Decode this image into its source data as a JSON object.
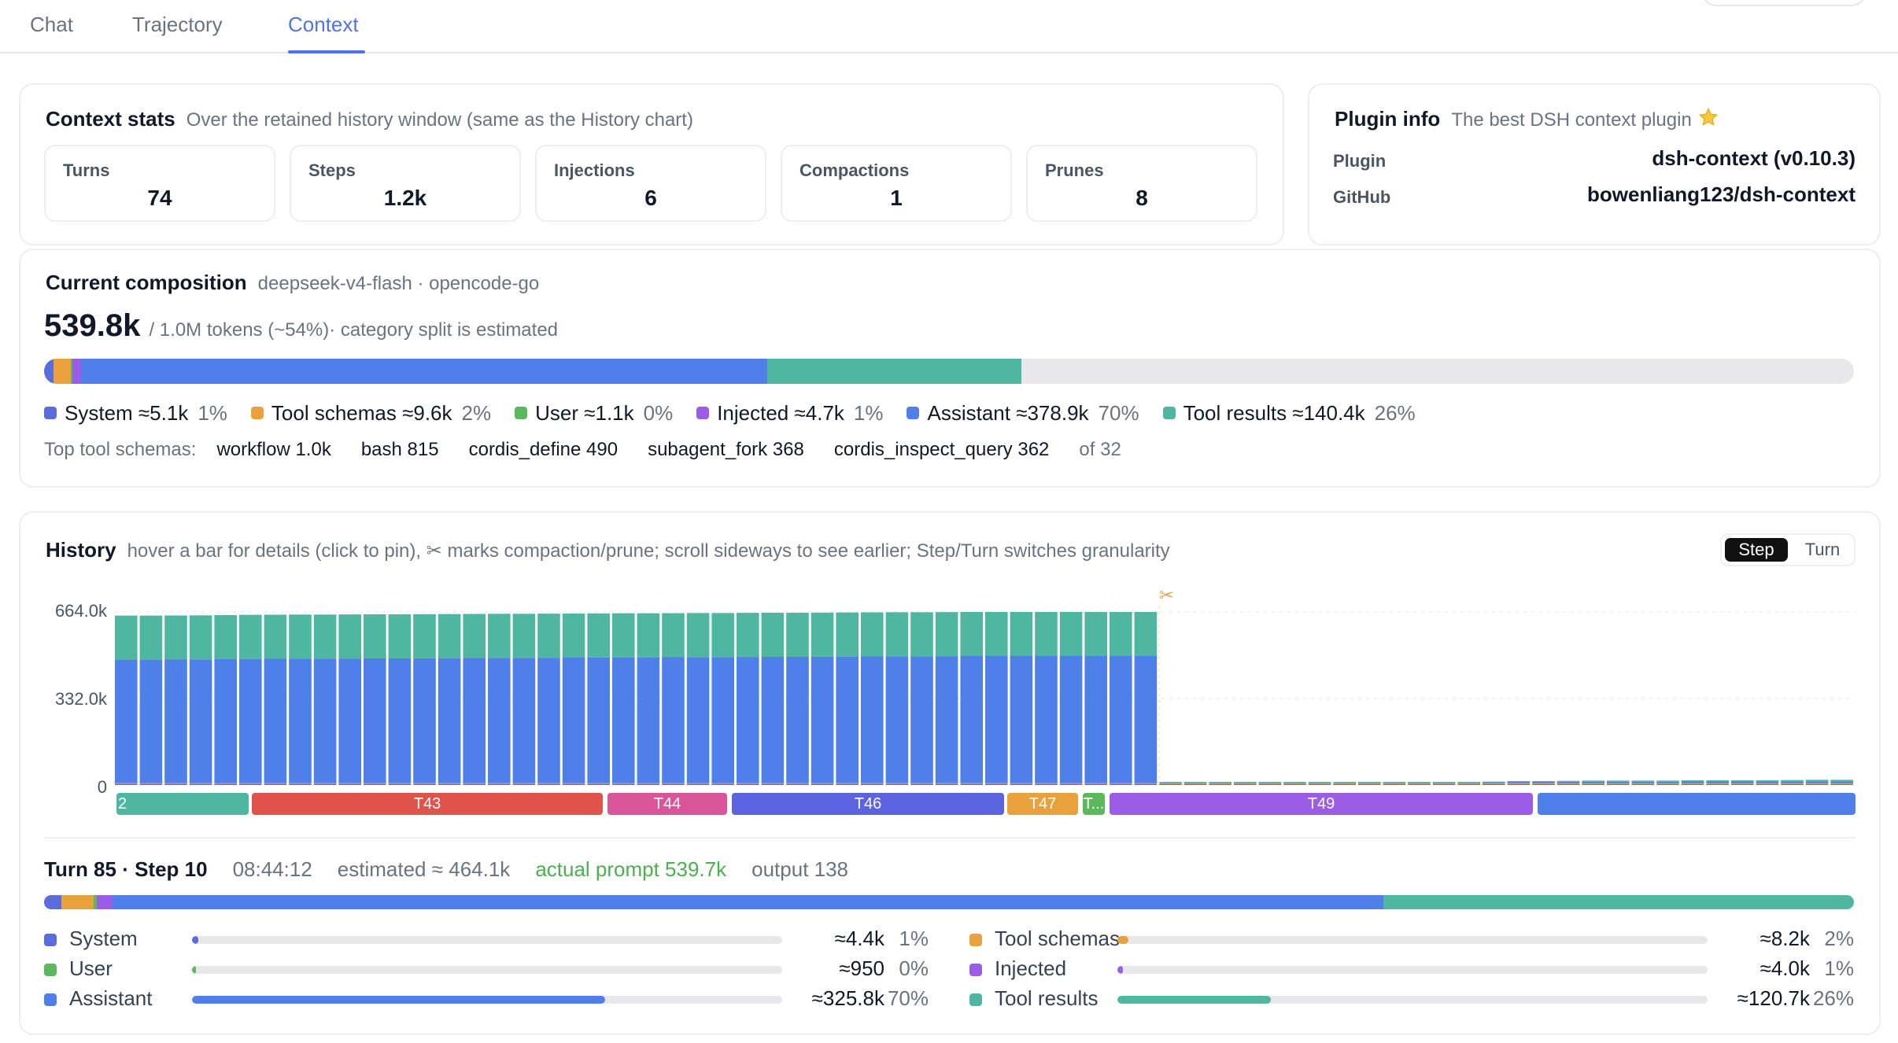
{
  "tabs": [
    {
      "label": "Chat"
    },
    {
      "label": "Trajectory"
    },
    {
      "label": "Context"
    }
  ],
  "context_stats": {
    "title": "Context stats",
    "subtitle": "Over the retained history window (same as the History chart)",
    "stats": [
      {
        "label": "Turns",
        "value": "74"
      },
      {
        "label": "Steps",
        "value": "1.2k"
      },
      {
        "label": "Injections",
        "value": "6"
      },
      {
        "label": "Compactions",
        "value": "1"
      },
      {
        "label": "Prunes",
        "value": "8"
      }
    ]
  },
  "plugin_info": {
    "title": "Plugin info",
    "subtitle": "The best DSH context plugin",
    "star_icon": "star-icon",
    "rows": [
      {
        "key": "Plugin",
        "value": "dsh-context (v0.10.3)"
      },
      {
        "key": "GitHub",
        "value": "bowenliang123/dsh-context"
      }
    ]
  },
  "composition": {
    "title": "Current composition",
    "subtitle": "deepseek-v4-flash · opencode-go",
    "total": "539.8k",
    "total_rest": "/ 1.0M tokens (~54%)· category split is estimated",
    "fill_fraction": 0.54,
    "segments": [
      {
        "name": "System",
        "fraction": 0.0095,
        "color": "#5b6cdd"
      },
      {
        "name": "Tool schemas",
        "fraction": 0.0178,
        "color": "#e9a13b"
      },
      {
        "name": "User",
        "fraction": 0.002,
        "color": "#5cb85c"
      },
      {
        "name": "Injected",
        "fraction": 0.0087,
        "color": "#9b5de5"
      },
      {
        "name": "Assistant",
        "fraction": 0.702,
        "color": "#4f7fe8"
      },
      {
        "name": "Tool results",
        "fraction": 0.26,
        "color": "#4fb6a0"
      }
    ],
    "legend": [
      {
        "label": "System ≈5.1k",
        "pct": "1%",
        "color": "#5b6cdd"
      },
      {
        "label": "Tool schemas ≈9.6k",
        "pct": "2%",
        "color": "#e9a13b"
      },
      {
        "label": "User ≈1.1k",
        "pct": "0%",
        "color": "#5cb85c"
      },
      {
        "label": "Injected ≈4.7k",
        "pct": "1%",
        "color": "#9b5de5"
      },
      {
        "label": "Assistant ≈378.9k",
        "pct": "70%",
        "color": "#4f7fe8"
      },
      {
        "label": "Tool results ≈140.4k",
        "pct": "26%",
        "color": "#4fb6a0"
      }
    ],
    "top_schemas_label": "Top tool schemas:",
    "top_schemas": [
      "workflow 1.0k",
      "bash 815",
      "cordis_define 490",
      "subagent_fork 368",
      "cordis_inspect_query 362"
    ],
    "top_schemas_of": "of 32"
  },
  "history": {
    "title": "History",
    "subtitle": "hover a bar for details (click to pin), ✂ marks compaction/prune; scroll sideways to see earlier; Step/Turn switches granularity",
    "toggle": {
      "active": "Step",
      "inactive": "Turn"
    },
    "y_ticks": [
      "664.0k",
      "332.0k",
      "0"
    ],
    "cut_marker": "✂",
    "turn_labels": [
      {
        "label": "2",
        "color": "#4fb6a0"
      },
      {
        "label": "T43",
        "color": "#e0534a"
      },
      {
        "label": "T44",
        "color": "#d9559a"
      },
      {
        "label": "T46",
        "color": "#5b63e0"
      },
      {
        "label": "T47",
        "color": "#e9a13b"
      },
      {
        "label": "T...",
        "color": "#5cb85c"
      },
      {
        "label": "T49",
        "color": "#9b5de5"
      },
      {
        "label": "",
        "color": "#4f7fe8"
      }
    ]
  },
  "chart_data": {
    "type": "bar",
    "stacked": true,
    "ylim": [
      0,
      664000
    ],
    "y_ticks": [
      "664.0k",
      "332.0k",
      "0"
    ],
    "series_order": [
      "System",
      "Tool schemas",
      "User",
      "Injected",
      "Assistant",
      "Tool results"
    ],
    "colors": {
      "System": "#5b6cdd",
      "Tool schemas": "#e9a13b",
      "User": "#5cb85c",
      "Injected": "#9b5de5",
      "Assistant": "#4f7fe8",
      "Tool results": "#4fb6a0"
    },
    "bars": [
      {
        "total": 650000,
        "assistant": 472000,
        "tool_results": 169000,
        "system": 5000,
        "tool_schemas": 2500,
        "injected": 1500
      },
      {
        "total": 650000,
        "assistant": 472000,
        "tool_results": 169000,
        "system": 5000,
        "tool_schemas": 2500,
        "injected": 1500
      },
      {
        "total": 650500,
        "assistant": 472500,
        "tool_results": 169000,
        "system": 5000,
        "tool_schemas": 2500,
        "injected": 1500
      },
      {
        "total": 651000,
        "assistant": 473000,
        "tool_results": 169000,
        "system": 5000,
        "tool_schemas": 2500,
        "injected": 1500
      },
      {
        "total": 652000,
        "assistant": 474000,
        "tool_results": 169000,
        "system": 5000,
        "tool_schemas": 2500,
        "injected": 1500
      },
      {
        "total": 653000,
        "assistant": 475000,
        "tool_results": 169000,
        "system": 5000,
        "tool_schemas": 2500,
        "injected": 1500
      },
      {
        "total": 653500,
        "assistant": 475500,
        "tool_results": 169000,
        "system": 5000,
        "tool_schemas": 2500,
        "injected": 1500
      },
      {
        "total": 654000,
        "assistant": 476000,
        "tool_results": 169000,
        "system": 5000,
        "tool_schemas": 2500,
        "injected": 1500
      },
      {
        "total": 654000,
        "assistant": 476000,
        "tool_results": 169000,
        "system": 5000,
        "tool_schemas": 2500,
        "injected": 1500
      },
      {
        "total": 654500,
        "assistant": 476500,
        "tool_results": 169000,
        "system": 5000,
        "tool_schemas": 2500,
        "injected": 1500
      },
      {
        "total": 655000,
        "assistant": 477000,
        "tool_results": 169000,
        "system": 5000,
        "tool_schemas": 2500,
        "injected": 1500
      },
      {
        "total": 655000,
        "assistant": 477000,
        "tool_results": 169000,
        "system": 5000,
        "tool_schemas": 2500,
        "injected": 1500
      },
      {
        "total": 655500,
        "assistant": 477500,
        "tool_results": 169000,
        "system": 5000,
        "tool_schemas": 2500,
        "injected": 1500
      },
      {
        "total": 656000,
        "assistant": 478000,
        "tool_results": 169000,
        "system": 5000,
        "tool_schemas": 2500,
        "injected": 1500
      },
      {
        "total": 656500,
        "assistant": 478500,
        "tool_results": 169000,
        "system": 5000,
        "tool_schemas": 2500,
        "injected": 1500
      },
      {
        "total": 657000,
        "assistant": 479000,
        "tool_results": 169000,
        "system": 5000,
        "tool_schemas": 2500,
        "injected": 1500
      },
      {
        "total": 657000,
        "assistant": 479000,
        "tool_results": 169000,
        "system": 5000,
        "tool_schemas": 2500,
        "injected": 1500
      },
      {
        "total": 657500,
        "assistant": 479500,
        "tool_results": 169000,
        "system": 5000,
        "tool_schemas": 2500,
        "injected": 1500
      },
      {
        "total": 658000,
        "assistant": 480000,
        "tool_results": 169000,
        "system": 5000,
        "tool_schemas": 2500,
        "injected": 1500
      },
      {
        "total": 658500,
        "assistant": 480500,
        "tool_results": 169000,
        "system": 5000,
        "tool_schemas": 2500,
        "injected": 1500
      },
      {
        "total": 659000,
        "assistant": 481000,
        "tool_results": 169000,
        "system": 5000,
        "tool_schemas": 2500,
        "injected": 1500
      },
      {
        "total": 659000,
        "assistant": 481000,
        "tool_results": 169000,
        "system": 5000,
        "tool_schemas": 2500,
        "injected": 1500
      },
      {
        "total": 659500,
        "assistant": 481500,
        "tool_results": 169000,
        "system": 5000,
        "tool_schemas": 2500,
        "injected": 1500
      },
      {
        "total": 660000,
        "assistant": 482000,
        "tool_results": 169000,
        "system": 5000,
        "tool_schemas": 2500,
        "injected": 1500
      },
      {
        "total": 660000,
        "assistant": 482000,
        "tool_results": 169000,
        "system": 5000,
        "tool_schemas": 2500,
        "injected": 1500
      },
      {
        "total": 660500,
        "assistant": 482500,
        "tool_results": 169000,
        "system": 5000,
        "tool_schemas": 2500,
        "injected": 1500
      },
      {
        "total": 661000,
        "assistant": 483000,
        "tool_results": 169000,
        "system": 5000,
        "tool_schemas": 2500,
        "injected": 1500
      },
      {
        "total": 661000,
        "assistant": 483000,
        "tool_results": 169000,
        "system": 5000,
        "tool_schemas": 2500,
        "injected": 1500
      },
      {
        "total": 661500,
        "assistant": 483500,
        "tool_results": 169000,
        "system": 5000,
        "tool_schemas": 2500,
        "injected": 1500
      },
      {
        "total": 662000,
        "assistant": 484000,
        "tool_results": 169000,
        "system": 5000,
        "tool_schemas": 2500,
        "injected": 1500
      },
      {
        "total": 662500,
        "assistant": 484500,
        "tool_results": 169000,
        "system": 5000,
        "tool_schemas": 2500,
        "injected": 1500
      },
      {
        "total": 663000,
        "assistant": 485000,
        "tool_results": 169000,
        "system": 5000,
        "tool_schemas": 2500,
        "injected": 1500
      },
      {
        "total": 663000,
        "assistant": 485000,
        "tool_results": 169000,
        "system": 5000,
        "tool_schemas": 2500,
        "injected": 1500
      },
      {
        "total": 663500,
        "assistant": 485500,
        "tool_results": 169000,
        "system": 5000,
        "tool_schemas": 2500,
        "injected": 1500
      },
      {
        "total": 664000,
        "assistant": 486000,
        "tool_results": 169000,
        "system": 5000,
        "tool_schemas": 2500,
        "injected": 1500
      },
      {
        "total": 664000,
        "assistant": 486000,
        "tool_results": 169000,
        "system": 5000,
        "tool_schemas": 2500,
        "injected": 1500
      },
      {
        "total": 664000,
        "assistant": 486000,
        "tool_results": 169000,
        "system": 5000,
        "tool_schemas": 2500,
        "injected": 1500
      },
      {
        "total": 664000,
        "assistant": 486000,
        "tool_results": 169000,
        "system": 5000,
        "tool_schemas": 2500,
        "injected": 1500
      },
      {
        "total": 664000,
        "assistant": 486000,
        "tool_results": 169000,
        "system": 5000,
        "tool_schemas": 2500,
        "injected": 1500
      },
      {
        "total": 664000,
        "assistant": 486000,
        "tool_results": 169000,
        "system": 5000,
        "tool_schemas": 2500,
        "injected": 1500
      },
      {
        "total": 664000,
        "assistant": 486000,
        "tool_results": 169000,
        "system": 5000,
        "tool_schemas": 2500,
        "injected": 1500
      },
      {
        "total": 664000,
        "assistant": 486000,
        "tool_results": 169000,
        "system": 5000,
        "tool_schemas": 2500,
        "injected": 1500
      },
      {
        "total": 12000,
        "assistant": 3000,
        "tool_results": 2000,
        "system": 4000,
        "tool_schemas": 2000,
        "injected": 1000
      },
      {
        "total": 12000,
        "assistant": 3000,
        "tool_results": 2000,
        "system": 4000,
        "tool_schemas": 2000,
        "injected": 1000
      },
      {
        "total": 12000,
        "assistant": 3000,
        "tool_results": 2000,
        "system": 4000,
        "tool_schemas": 2000,
        "injected": 1000
      },
      {
        "total": 12000,
        "assistant": 3000,
        "tool_results": 2000,
        "system": 4000,
        "tool_schemas": 2000,
        "injected": 1000
      },
      {
        "total": 12000,
        "assistant": 3000,
        "tool_results": 2000,
        "system": 4000,
        "tool_schemas": 2000,
        "injected": 1000
      },
      {
        "total": 12000,
        "assistant": 3000,
        "tool_results": 2000,
        "system": 4000,
        "tool_schemas": 2000,
        "injected": 1000
      },
      {
        "total": 12000,
        "assistant": 3000,
        "tool_results": 2000,
        "system": 4000,
        "tool_schemas": 2000,
        "injected": 1000
      },
      {
        "total": 12000,
        "assistant": 3000,
        "tool_results": 2000,
        "system": 4000,
        "tool_schemas": 2000,
        "injected": 1000
      },
      {
        "total": 12000,
        "assistant": 3000,
        "tool_results": 2000,
        "system": 4000,
        "tool_schemas": 2000,
        "injected": 1000
      },
      {
        "total": 12000,
        "assistant": 3000,
        "tool_results": 2000,
        "system": 4000,
        "tool_schemas": 2000,
        "injected": 1000
      },
      {
        "total": 12000,
        "assistant": 3000,
        "tool_results": 2000,
        "system": 4000,
        "tool_schemas": 2000,
        "injected": 1000
      },
      {
        "total": 12000,
        "assistant": 3000,
        "tool_results": 2000,
        "system": 4000,
        "tool_schemas": 2000,
        "injected": 1000
      },
      {
        "total": 12000,
        "assistant": 3000,
        "tool_results": 2000,
        "system": 4000,
        "tool_schemas": 2000,
        "injected": 1000
      },
      {
        "total": 13000,
        "assistant": 3500,
        "tool_results": 2500,
        "system": 4000,
        "tool_schemas": 2000,
        "injected": 1000
      },
      {
        "total": 15000,
        "assistant": 5000,
        "tool_results": 3000,
        "system": 4000,
        "tool_schemas": 2000,
        "injected": 1000
      },
      {
        "total": 15000,
        "assistant": 5000,
        "tool_results": 3000,
        "system": 4000,
        "tool_schemas": 2000,
        "injected": 1000
      },
      {
        "total": 16000,
        "assistant": 5500,
        "tool_results": 3500,
        "system": 4000,
        "tool_schemas": 2000,
        "injected": 1000
      },
      {
        "total": 17000,
        "assistant": 6000,
        "tool_results": 4000,
        "system": 4000,
        "tool_schemas": 2000,
        "injected": 1000
      },
      {
        "total": 17000,
        "assistant": 6000,
        "tool_results": 4000,
        "system": 4000,
        "tool_schemas": 2000,
        "injected": 1000
      },
      {
        "total": 17000,
        "assistant": 6000,
        "tool_results": 4000,
        "system": 4000,
        "tool_schemas": 2000,
        "injected": 1000
      },
      {
        "total": 17000,
        "assistant": 6000,
        "tool_results": 4000,
        "system": 4000,
        "tool_schemas": 2000,
        "injected": 1000
      },
      {
        "total": 18000,
        "assistant": 6500,
        "tool_results": 4500,
        "system": 4000,
        "tool_schemas": 2000,
        "injected": 1000
      },
      {
        "total": 18000,
        "assistant": 6500,
        "tool_results": 4500,
        "system": 4000,
        "tool_schemas": 2000,
        "injected": 1000
      },
      {
        "total": 18000,
        "assistant": 6500,
        "tool_results": 4500,
        "system": 4000,
        "tool_schemas": 2000,
        "injected": 1000
      },
      {
        "total": 18000,
        "assistant": 6500,
        "tool_results": 4500,
        "system": 4000,
        "tool_schemas": 2000,
        "injected": 1000
      },
      {
        "total": 19000,
        "assistant": 7000,
        "tool_results": 5000,
        "system": 4000,
        "tool_schemas": 2000,
        "injected": 1000
      },
      {
        "total": 20000,
        "assistant": 7500,
        "tool_results": 5500,
        "system": 4000,
        "tool_schemas": 2000,
        "injected": 1000
      },
      {
        "total": 20000,
        "assistant": 7500,
        "tool_results": 5500,
        "system": 4000,
        "tool_schemas": 2000,
        "injected": 1000
      }
    ]
  },
  "detail": {
    "title": "Turn 85 · Step 10",
    "time": "08:44:12",
    "estimated": "estimated ≈ 464.1k",
    "actual": "actual prompt 539.7k",
    "output": "output 138",
    "segments": [
      {
        "name": "System",
        "fraction": 0.0095,
        "color": "#5b6cdd"
      },
      {
        "name": "Tool schemas",
        "fraction": 0.0178,
        "color": "#e9a13b"
      },
      {
        "name": "User",
        "fraction": 0.002,
        "color": "#5cb85c"
      },
      {
        "name": "Injected",
        "fraction": 0.0086,
        "color": "#9b5de5"
      },
      {
        "name": "Assistant",
        "fraction": 0.702,
        "color": "#4f7fe8"
      },
      {
        "name": "Tool results",
        "fraction": 0.26,
        "color": "#4fb6a0"
      }
    ],
    "left_rows": [
      {
        "label": "System",
        "value": "≈4.4k",
        "pct": "1%",
        "fraction": 0.01,
        "color": "#5b6cdd"
      },
      {
        "label": "User",
        "value": "≈950",
        "pct": "0%",
        "fraction": 0.002,
        "color": "#5cb85c"
      },
      {
        "label": "Assistant",
        "value": "≈325.8k",
        "pct": "70%",
        "fraction": 0.7,
        "color": "#4f7fe8"
      }
    ],
    "right_rows": [
      {
        "label": "Tool schemas",
        "value": "≈8.2k",
        "pct": "2%",
        "fraction": 0.018,
        "color": "#e9a13b"
      },
      {
        "label": "Injected",
        "value": "≈4.0k",
        "pct": "1%",
        "fraction": 0.009,
        "color": "#9b5de5"
      },
      {
        "label": "Tool results",
        "value": "≈120.7k",
        "pct": "26%",
        "fraction": 0.26,
        "color": "#4fb6a0"
      }
    ]
  }
}
